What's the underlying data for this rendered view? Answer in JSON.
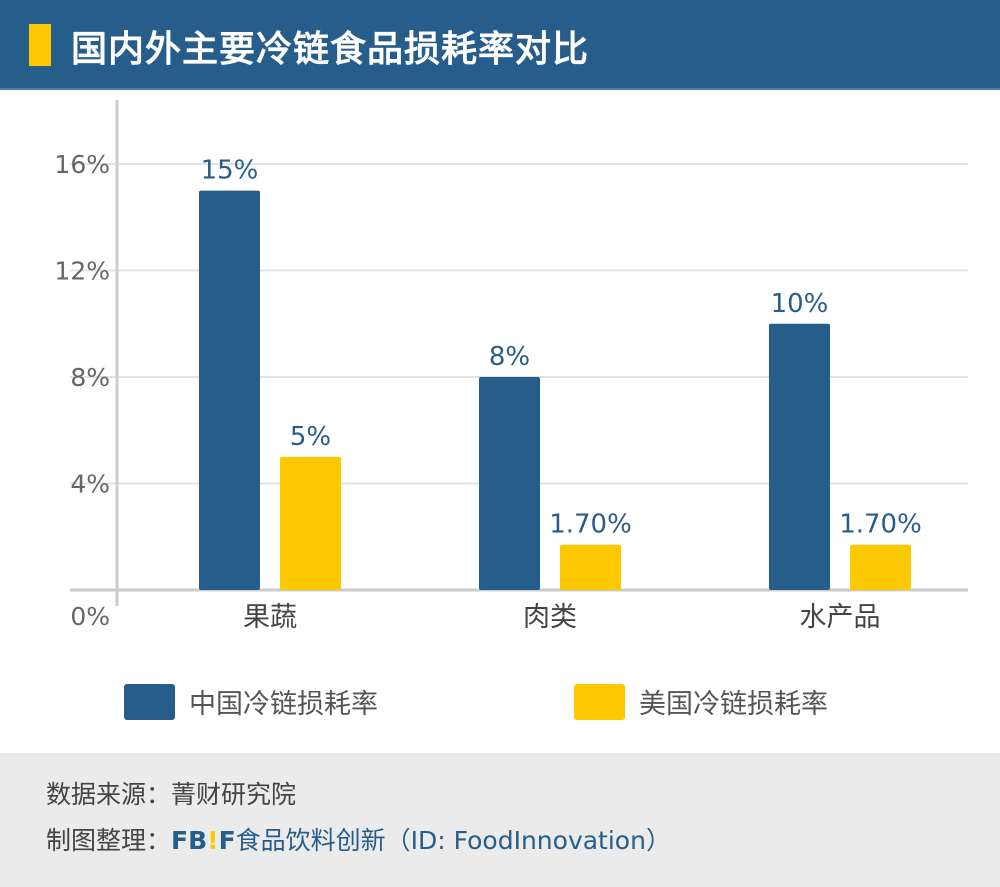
{
  "header": {
    "title": "国内外主要冷链食品损耗率对比"
  },
  "chart_data": {
    "type": "bar",
    "categories": [
      "果蔬",
      "肉类",
      "水产品"
    ],
    "series": [
      {
        "name": "中国冷链损耗率",
        "color": "#275d8a",
        "values": [
          15,
          8,
          10
        ],
        "labels": [
          "15%",
          "8%",
          "10%"
        ]
      },
      {
        "name": "美国冷链损耗率",
        "color": "#fcc800",
        "values": [
          5,
          1.7,
          1.7
        ],
        "labels": [
          "5%",
          "1.70%",
          "1.70%"
        ]
      }
    ],
    "yticks": [
      "0%",
      "4%",
      "8%",
      "12%",
      "16%"
    ],
    "ytick_values": [
      0,
      4,
      8,
      12,
      16
    ],
    "ylim": [
      0,
      16
    ],
    "grid": true,
    "legend": "bottom"
  },
  "footer": {
    "source_label": "数据来源：",
    "source": "菁财研究院",
    "maker_label": "制图整理：",
    "logo_text": "FB!F",
    "maker": "食品饮料创新（ID: FoodInnovation）"
  }
}
